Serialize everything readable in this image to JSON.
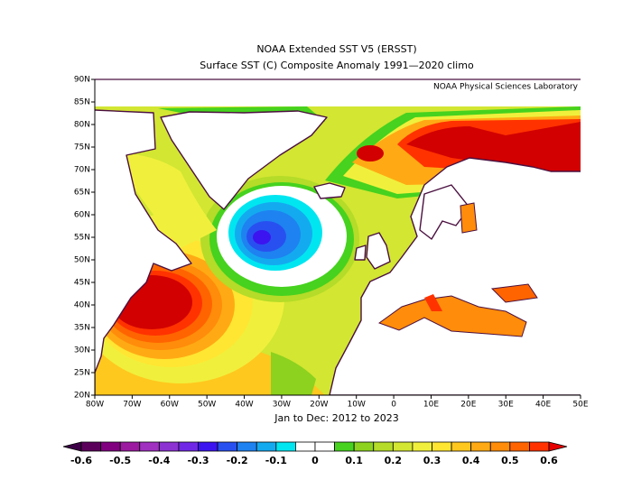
{
  "title": "NOAA Extended SST V5 (ERSST)",
  "subtitle": "Surface SST (C) Composite Anomaly 1991—2020 climo",
  "credit": "NOAA Physical Sciences Laboratory",
  "period": "Jan to Dec: 2012 to 2023",
  "lat_labels": [
    "20N",
    "25N",
    "30N",
    "35N",
    "40N",
    "45N",
    "50N",
    "55N",
    "60N",
    "65N",
    "70N",
    "75N",
    "80N",
    "85N",
    "90N"
  ],
  "lon_labels": [
    "80W",
    "70W",
    "60W",
    "50W",
    "40W",
    "30W",
    "20W",
    "10W",
    "0",
    "10E",
    "20E",
    "30E",
    "40E",
    "50E"
  ],
  "colorbar": {
    "labels": [
      "-0.6",
      "-0.5",
      "-0.4",
      "-0.3",
      "-0.2",
      "-0.1",
      "0",
      "0.1",
      "0.2",
      "0.3",
      "0.4",
      "0.5",
      "0.6"
    ],
    "colors": [
      "#3c0046",
      "#5a005a",
      "#800080",
      "#9c1aa0",
      "#a030c0",
      "#8c32d2",
      "#7028e6",
      "#3c14f0",
      "#2850f0",
      "#1e82f0",
      "#14aaf0",
      "#00e6f0",
      "#ffffff",
      "#ffffff",
      "#46d21e",
      "#8cd21e",
      "#b4dc28",
      "#d2e632",
      "#f0f03c",
      "#ffe632",
      "#ffc81e",
      "#ffaa14",
      "#ff8c0a",
      "#ff6400",
      "#ff3200",
      "#e60000"
    ]
  }
}
